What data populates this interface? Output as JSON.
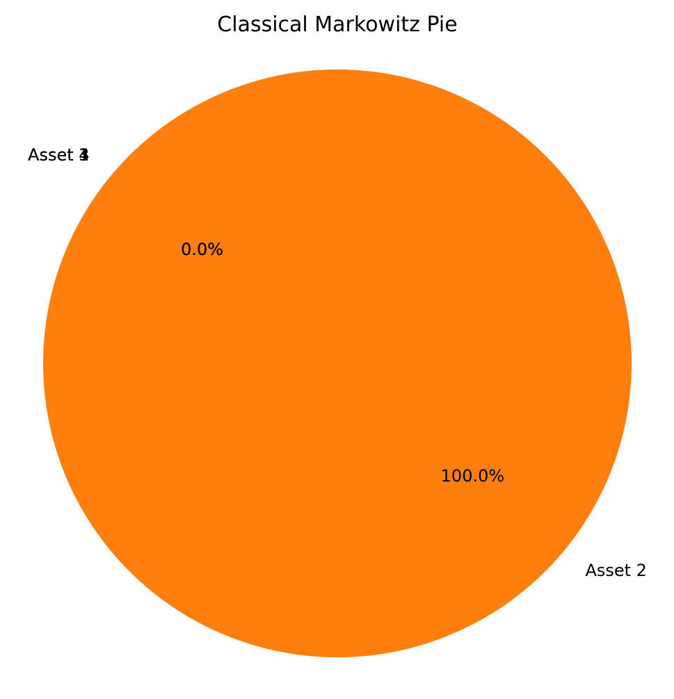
{
  "chart_data": {
    "type": "pie",
    "title": "Classical Markowitz Pie",
    "labels": [
      "Asset 1",
      "Asset 2",
      "Asset 3",
      "Asset 4"
    ],
    "values": [
      0.0,
      100.0,
      0.0,
      0.0
    ],
    "percent_labels": [
      "0.0%",
      "100.0%",
      "0.0%",
      "0.0%"
    ],
    "colors": [
      "#1f77b4",
      "#ff7f0e",
      "#2ca02c",
      "#d62728"
    ],
    "start_angle_deg": 140,
    "direction": "counterclockwise"
  }
}
